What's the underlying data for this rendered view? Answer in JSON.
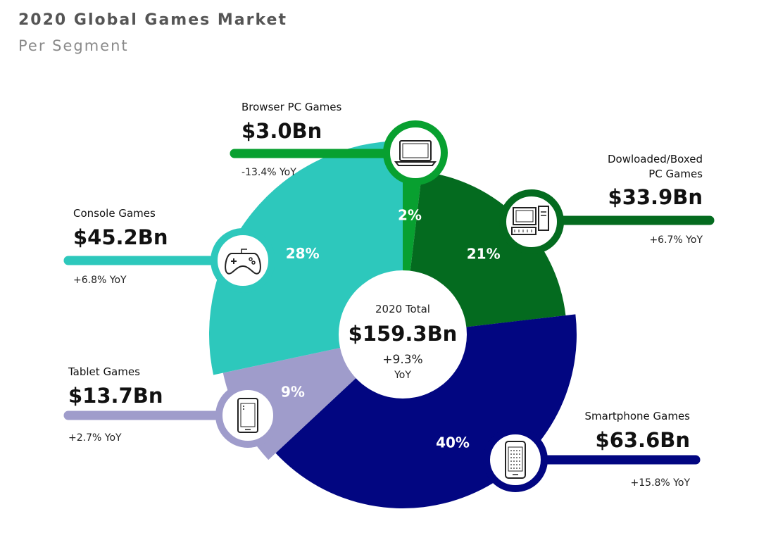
{
  "header": {
    "title": "2020 Global Games Market",
    "subtitle": "Per Segment"
  },
  "center": {
    "label": "2020 Total",
    "total": "$159.3Bn",
    "yoy": "+9.3%",
    "yoy_unit": "YoY"
  },
  "chart_data": {
    "type": "pie",
    "title": "2020 Global Games Market",
    "subtitle": "Per Segment",
    "unit": "$Bn",
    "total": 159.3,
    "slices": [
      {
        "name": "Browser PC Games",
        "value": 3.0,
        "value_label": "$3.0Bn",
        "percent": 2,
        "percent_label": "2%",
        "yoy": "-13.4% YoY",
        "color": "#08a030",
        "icon": "laptop-icon"
      },
      {
        "name": "Dowloaded/Boxed PC Games",
        "name_lines": [
          "Dowloaded/Boxed",
          "PC Games"
        ],
        "value": 33.9,
        "value_label": "$33.9Bn",
        "percent": 21,
        "percent_label": "21%",
        "yoy": "+6.7% YoY",
        "color": "#046b1f",
        "icon": "desktop-pc-icon"
      },
      {
        "name": "Smartphone Games",
        "value": 63.6,
        "value_label": "$63.6Bn",
        "percent": 40,
        "percent_label": "40%",
        "yoy": "+15.8% YoY",
        "color": "#020681",
        "icon": "smartphone-icon"
      },
      {
        "name": "Tablet Games",
        "value": 13.7,
        "value_label": "$13.7Bn",
        "percent": 9,
        "percent_label": "9%",
        "yoy": "+2.7% YoY",
        "color": "#9f9ccb",
        "icon": "tablet-icon"
      },
      {
        "name": "Console Games",
        "value": 45.2,
        "value_label": "$45.2Bn",
        "percent": 28,
        "percent_label": "28%",
        "yoy": "+6.8% YoY",
        "color": "#2dc8bc",
        "icon": "gamepad-icon"
      }
    ]
  }
}
